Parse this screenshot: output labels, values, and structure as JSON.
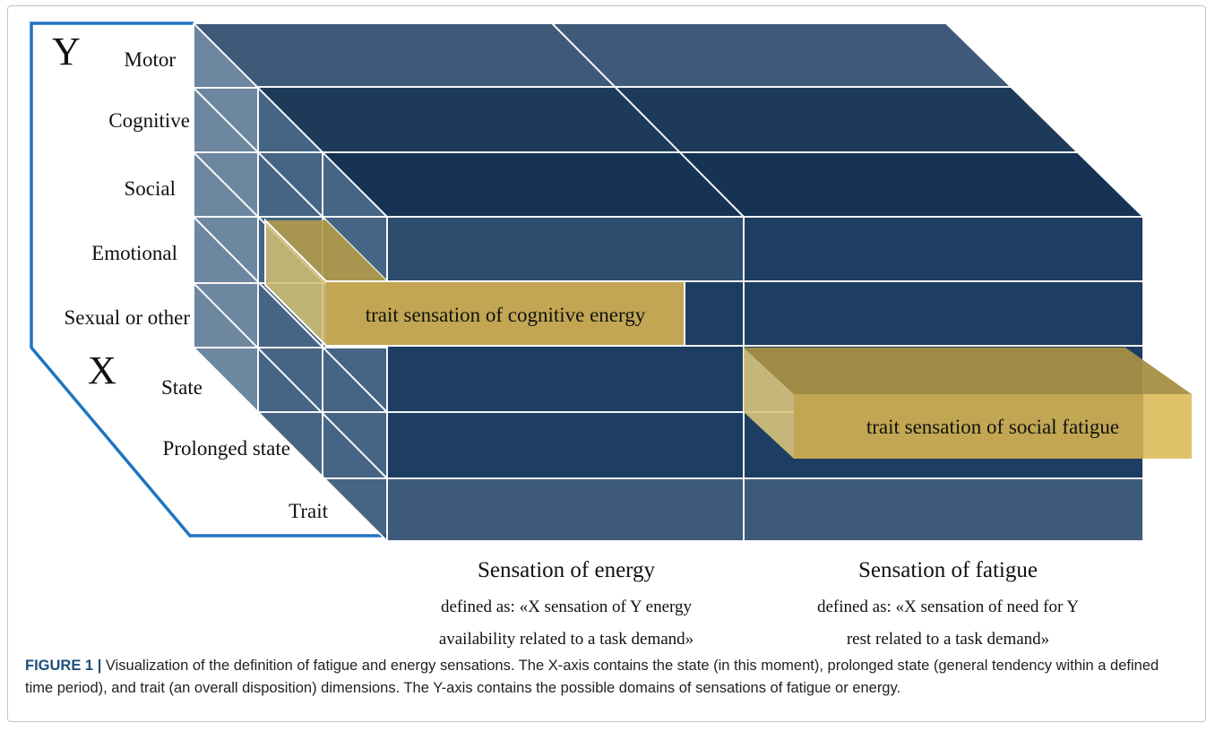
{
  "diagram": {
    "y_axis_letter": "Y",
    "x_axis_letter": "X",
    "y_labels": [
      "Motor",
      "Cognitive",
      "Social",
      "Emotional",
      "Sexual or other"
    ],
    "x_labels": [
      "State",
      "Prolonged state",
      "Trait"
    ],
    "highlight_energy": "trait sensation of cognitive energy",
    "highlight_fatigue": "trait sensation of social fatigue",
    "energy_title": "Sensation of energy",
    "energy_def_line1": "defined as: «X sensation of Y energy",
    "energy_def_line2": "availability related to a task demand»",
    "fatigue_title": "Sensation of fatigue",
    "fatigue_def_line1": "defined as: «X sensation of need for Y",
    "fatigue_def_line2": "rest related to a task demand»",
    "colors": {
      "box_fill": "#1d3d62",
      "box_light": "#5a7896",
      "highlight": "#c4a853",
      "axis_line": "#1f74c0"
    }
  },
  "caption": {
    "label": "FIGURE 1",
    "separator": "|",
    "text": "Visualization of the definition of fatigue and energy sensations. The X-axis contains the state (in this moment), prolonged state (general tendency within a defined time period), and trait (an overall disposition) dimensions. The Y-axis contains the possible domains of sensations of fatigue or energy."
  }
}
